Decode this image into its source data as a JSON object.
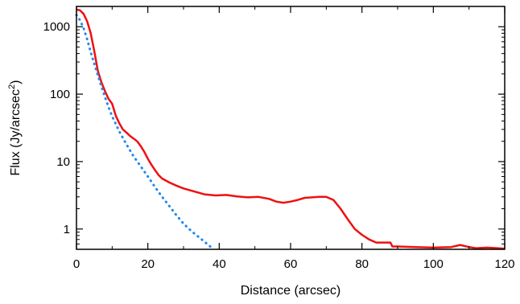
{
  "chart_data": {
    "type": "line",
    "xlabel": "Distance (arcsec)",
    "ylabel": {
      "text": "Flux (Jy/arcsec",
      "superscript": "2",
      "suffix": ")"
    },
    "xlim": [
      0,
      120
    ],
    "ylim": [
      0.5,
      2000
    ],
    "yscale": "log",
    "grid": false,
    "x_ticks": [
      0,
      20,
      40,
      60,
      80,
      100,
      120
    ],
    "x_tick_labels": [
      "0",
      "20",
      "40",
      "60",
      "80",
      "100",
      "120"
    ],
    "y_ticks": [
      1,
      10,
      100,
      1000
    ],
    "y_tick_labels": [
      "1",
      "10",
      "100",
      "1000"
    ],
    "series": [
      {
        "style": "solid",
        "color": "#ee1111",
        "x": [
          0,
          1,
          2,
          3,
          4,
          5,
          6,
          7,
          8,
          9,
          10,
          11,
          12,
          13,
          14,
          15,
          16,
          17,
          18,
          19,
          20,
          21,
          22,
          23,
          24,
          26,
          28,
          30,
          33,
          36,
          39,
          42,
          45,
          48,
          51,
          54,
          56,
          58,
          60,
          62,
          64,
          66,
          68,
          70,
          72,
          74,
          76,
          78,
          80,
          82,
          84,
          86,
          88,
          88.5,
          90,
          95,
          100,
          105,
          107.5,
          110,
          112,
          115,
          118,
          120
        ],
        "y": [
          1800,
          1750,
          1550,
          1200,
          800,
          430,
          220,
          150,
          110,
          85,
          72,
          48,
          37,
          30,
          27,
          24,
          22,
          20,
          17,
          14,
          11,
          9,
          7.5,
          6.3,
          5.6,
          4.9,
          4.4,
          4.0,
          3.6,
          3.25,
          3.15,
          3.2,
          3.05,
          2.95,
          3.0,
          2.8,
          2.55,
          2.45,
          2.55,
          2.7,
          2.9,
          2.95,
          3.0,
          3.0,
          2.7,
          2.0,
          1.4,
          1.0,
          0.82,
          0.7,
          0.63,
          0.63,
          0.63,
          0.55,
          0.55,
          0.54,
          0.53,
          0.54,
          0.58,
          0.54,
          0.52,
          0.53,
          0.52,
          0.51
        ]
      },
      {
        "style": "dotted",
        "color": "#2288ee",
        "x": [
          0,
          1,
          2,
          3,
          4,
          5,
          6,
          7,
          8,
          9,
          10,
          12,
          14,
          16,
          18,
          20,
          22,
          24,
          26,
          28,
          30,
          32,
          34,
          36,
          38
        ],
        "y": [
          1500,
          1250,
          950,
          650,
          420,
          280,
          190,
          130,
          90,
          64,
          47,
          28,
          18,
          12,
          8.5,
          6.0,
          4.2,
          3.0,
          2.2,
          1.6,
          1.2,
          0.95,
          0.78,
          0.64,
          0.52
        ]
      }
    ]
  }
}
